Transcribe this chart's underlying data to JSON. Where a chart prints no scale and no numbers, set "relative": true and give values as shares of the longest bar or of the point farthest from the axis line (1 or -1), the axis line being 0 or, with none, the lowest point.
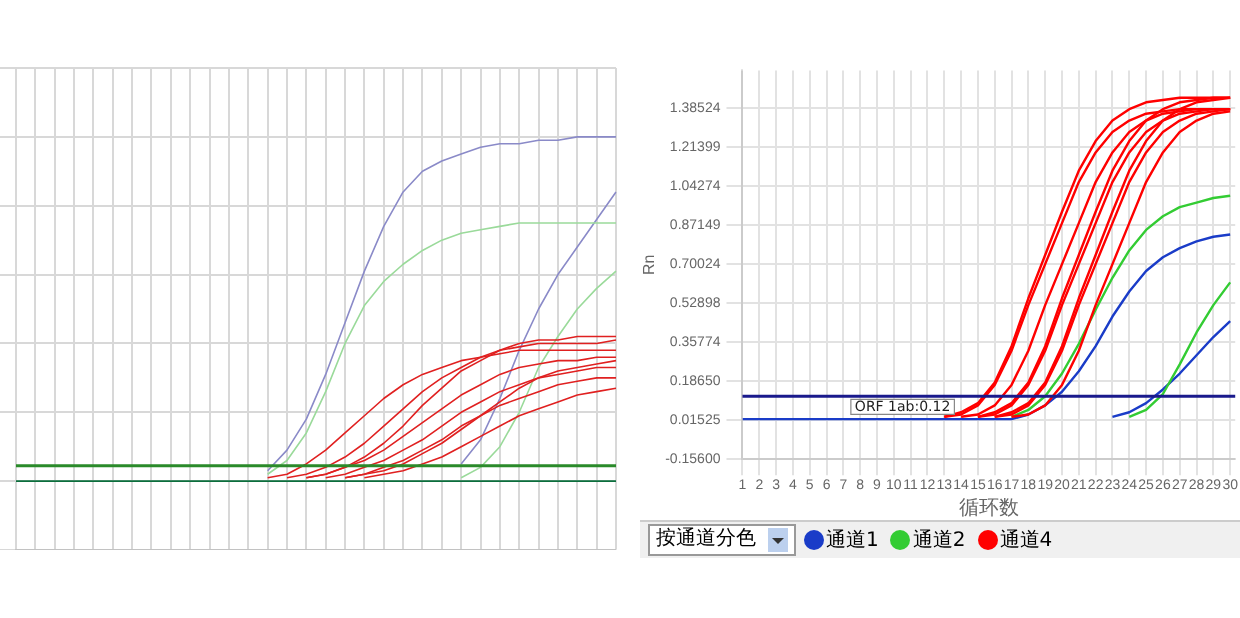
{
  "chart_data": [
    {
      "type": "line",
      "relative": true,
      "grid": true,
      "legend": false,
      "tick_labels": false,
      "marker": "none",
      "line_style": "solid",
      "categories": [
        null,
        null,
        null,
        null,
        null,
        null,
        null,
        null,
        null,
        null,
        null,
        null,
        null,
        null,
        null,
        null,
        null,
        null,
        null,
        null,
        null,
        null,
        null,
        null,
        null,
        null,
        null,
        null,
        null,
        null,
        null,
        null
      ],
      "ref_lines": [
        {
          "axis": "y",
          "value": 0.045,
          "color": "#2a8a2a"
        }
      ],
      "series": [
        {
          "color": "#8a8ac8",
          "values": [
            null,
            null,
            null,
            null,
            null,
            null,
            null,
            null,
            null,
            null,
            null,
            null,
            null,
            0.03,
            0.09,
            0.18,
            0.31,
            0.46,
            0.61,
            0.74,
            0.84,
            0.9,
            0.93,
            0.95,
            0.97,
            0.98,
            0.98,
            0.99,
            0.99,
            1,
            1,
            1
          ]
        },
        {
          "color": "#8a8ac8",
          "values": [
            null,
            null,
            null,
            null,
            null,
            null,
            null,
            null,
            null,
            null,
            null,
            null,
            null,
            null,
            null,
            null,
            null,
            null,
            null,
            null,
            null,
            null,
            null,
            0.05,
            0.12,
            0.24,
            0.38,
            0.5,
            0.6,
            0.68,
            0.76,
            0.84
          ]
        },
        {
          "color": "#9ada9a",
          "values": [
            null,
            null,
            null,
            null,
            null,
            null,
            null,
            null,
            null,
            null,
            null,
            null,
            null,
            0.02,
            0.06,
            0.14,
            0.26,
            0.4,
            0.51,
            0.58,
            0.63,
            0.67,
            0.7,
            0.72,
            0.73,
            0.74,
            0.75,
            0.75,
            0.75,
            0.75,
            0.75,
            0.75
          ]
        },
        {
          "color": "#9ada9a",
          "values": [
            null,
            null,
            null,
            null,
            null,
            null,
            null,
            null,
            null,
            null,
            null,
            null,
            null,
            null,
            null,
            null,
            null,
            null,
            null,
            null,
            null,
            null,
            null,
            0.01,
            0.04,
            0.1,
            0.2,
            0.33,
            0.42,
            0.5,
            0.56,
            0.61
          ]
        },
        {
          "color": "#0b6e3c",
          "values": [
            0,
            0,
            0,
            0,
            0,
            0,
            0,
            0,
            0,
            0,
            0,
            0,
            0,
            0,
            0,
            0,
            0,
            0,
            0,
            0,
            0,
            0,
            0,
            0,
            0,
            0,
            0,
            0,
            0,
            0,
            0,
            0
          ]
        },
        {
          "color": "#e02020",
          "values": [
            null,
            null,
            null,
            null,
            null,
            null,
            null,
            null,
            null,
            null,
            null,
            null,
            null,
            0.01,
            0.02,
            0.05,
            0.09,
            0.14,
            0.19,
            0.24,
            0.28,
            0.31,
            0.33,
            0.35,
            0.36,
            0.37,
            0.38,
            0.38,
            0.38,
            0.38,
            0.38,
            0.38
          ]
        },
        {
          "color": "#e02020",
          "values": [
            null,
            null,
            null,
            null,
            null,
            null,
            null,
            null,
            null,
            null,
            null,
            null,
            null,
            null,
            0.01,
            0.02,
            0.04,
            0.07,
            0.11,
            0.16,
            0.21,
            0.26,
            0.3,
            0.33,
            0.36,
            0.38,
            0.39,
            0.4,
            0.4,
            0.4,
            0.4,
            0.41
          ]
        },
        {
          "color": "#e02020",
          "values": [
            null,
            null,
            null,
            null,
            null,
            null,
            null,
            null,
            null,
            null,
            null,
            null,
            null,
            null,
            null,
            0.01,
            0.02,
            0.04,
            0.06,
            0.09,
            0.13,
            0.17,
            0.21,
            0.25,
            0.28,
            0.31,
            0.33,
            0.34,
            0.35,
            0.35,
            0.36,
            0.36
          ]
        },
        {
          "color": "#e02020",
          "values": [
            null,
            null,
            null,
            null,
            null,
            null,
            null,
            null,
            null,
            null,
            null,
            null,
            null,
            null,
            null,
            null,
            0.01,
            0.02,
            0.04,
            0.06,
            0.09,
            0.12,
            0.16,
            0.2,
            0.23,
            0.26,
            0.28,
            0.3,
            0.31,
            0.32,
            0.33,
            0.33
          ]
        },
        {
          "color": "#e02020",
          "values": [
            null,
            null,
            null,
            null,
            null,
            null,
            null,
            null,
            null,
            null,
            null,
            null,
            null,
            null,
            null,
            null,
            null,
            0.01,
            0.02,
            0.04,
            0.06,
            0.09,
            0.12,
            0.16,
            0.19,
            0.22,
            0.24,
            0.26,
            0.28,
            0.29,
            0.3,
            0.3
          ]
        },
        {
          "color": "#e02020",
          "values": [
            null,
            null,
            null,
            null,
            null,
            null,
            null,
            null,
            null,
            null,
            null,
            null,
            null,
            null,
            null,
            null,
            null,
            null,
            0.01,
            0.02,
            0.03,
            0.05,
            0.07,
            0.1,
            0.13,
            0.16,
            0.19,
            0.21,
            0.23,
            0.25,
            0.26,
            0.27
          ]
        },
        {
          "color": "#e02020",
          "values": [
            null,
            null,
            null,
            null,
            null,
            null,
            null,
            null,
            null,
            null,
            null,
            null,
            null,
            null,
            null,
            null,
            null,
            0.01,
            0.02,
            0.03,
            0.05,
            0.08,
            0.11,
            0.15,
            0.19,
            0.23,
            0.27,
            0.3,
            0.32,
            0.33,
            0.34,
            0.35
          ]
        },
        {
          "color": "#e02020",
          "values": [
            null,
            null,
            null,
            null,
            null,
            null,
            null,
            null,
            null,
            null,
            null,
            null,
            null,
            null,
            null,
            0.01,
            0.02,
            0.04,
            0.07,
            0.11,
            0.16,
            0.22,
            0.27,
            0.32,
            0.35,
            0.38,
            0.4,
            0.41,
            0.41,
            0.42,
            0.42,
            0.42
          ]
        }
      ]
    },
    {
      "type": "line",
      "grid": true,
      "legend": "bottom left",
      "marker": "none",
      "line_style": "solid",
      "xlabel": "循环数",
      "ylabel": "Rn",
      "annotations": [
        "按通道分色"
      ],
      "x": [
        1,
        2,
        3,
        4,
        5,
        6,
        7,
        8,
        9,
        10,
        11,
        12,
        13,
        14,
        15,
        16,
        17,
        18,
        19,
        20,
        21,
        22,
        23,
        24,
        25,
        26,
        27,
        28,
        29,
        30
      ],
      "xlim": [
        1,
        30.3
      ],
      "xticks": [
        1,
        2,
        3,
        4,
        5,
        6,
        7,
        8,
        9,
        10,
        11,
        12,
        13,
        14,
        15,
        16,
        17,
        18,
        19,
        20,
        21,
        22,
        23,
        24,
        25,
        26,
        27,
        28,
        29,
        30
      ],
      "ylim": [
        -0.156,
        1.55
      ],
      "yticks": [
        {
          "value": -0.156,
          "label": "-0.15600"
        },
        0.01525,
        {
          "value": 0.1865,
          "label": "0.18650"
        },
        0.35774,
        0.52898,
        0.70024,
        0.87149,
        1.04274,
        1.21399,
        1.38524
      ],
      "ref_lines": [
        {
          "axis": "y",
          "value": 0.12,
          "label": "ORF 1ab:0.12",
          "color": "#1a1a8c"
        }
      ],
      "series": [
        {
          "name": "通道1",
          "color": "#1a3cc8",
          "values": [
            0.02,
            0.02,
            0.02,
            0.02,
            0.02,
            0.02,
            0.02,
            0.02,
            0.02,
            0.02,
            0.02,
            0.02,
            0.02,
            0.02,
            0.02,
            0.02,
            0.02,
            0.04,
            0.08,
            0.14,
            0.23,
            0.34,
            0.47,
            0.58,
            0.67,
            0.73,
            0.77,
            0.8,
            0.82,
            0.83
          ]
        },
        {
          "color": "#1a3cc8",
          "values": [
            null,
            null,
            null,
            null,
            null,
            null,
            null,
            null,
            null,
            null,
            null,
            null,
            null,
            null,
            null,
            null,
            null,
            null,
            null,
            null,
            null,
            null,
            0.03,
            0.05,
            0.09,
            0.15,
            0.22,
            0.3,
            0.38,
            0.45
          ]
        },
        {
          "name": "通道2",
          "color": "#33cc33",
          "values": [
            null,
            null,
            null,
            null,
            null,
            null,
            null,
            null,
            null,
            null,
            null,
            null,
            null,
            null,
            null,
            null,
            0.03,
            0.06,
            0.12,
            0.22,
            0.35,
            0.5,
            0.64,
            0.76,
            0.85,
            0.91,
            0.95,
            0.97,
            0.99,
            1
          ]
        },
        {
          "color": "#33cc33",
          "values": [
            null,
            null,
            null,
            null,
            null,
            null,
            null,
            null,
            null,
            null,
            null,
            null,
            null,
            null,
            null,
            null,
            null,
            null,
            null,
            null,
            null,
            null,
            null,
            0.03,
            0.06,
            0.13,
            0.26,
            0.4,
            0.52,
            0.62
          ]
        },
        {
          "name": "通道4",
          "color": "#ff0000",
          "values": [
            null,
            null,
            null,
            null,
            null,
            null,
            null,
            null,
            null,
            null,
            null,
            null,
            0.03,
            0.04,
            0.08,
            0.17,
            0.32,
            0.52,
            0.7,
            0.88,
            1.06,
            1.19,
            1.28,
            1.33,
            1.36,
            1.37,
            1.38,
            1.38,
            1.38,
            1.38
          ]
        },
        {
          "color": "#ff0000",
          "values": [
            null,
            null,
            null,
            null,
            null,
            null,
            null,
            null,
            null,
            null,
            null,
            null,
            0.03,
            0.05,
            0.09,
            0.18,
            0.34,
            0.55,
            0.74,
            0.93,
            1.11,
            1.24,
            1.33,
            1.38,
            1.41,
            1.42,
            1.43,
            1.43,
            1.43,
            1.43
          ]
        },
        {
          "color": "#ff0000",
          "values": [
            null,
            null,
            null,
            null,
            null,
            null,
            null,
            null,
            null,
            null,
            null,
            null,
            null,
            0.03,
            0.04,
            0.08,
            0.17,
            0.32,
            0.52,
            0.7,
            0.88,
            1.06,
            1.19,
            1.28,
            1.33,
            1.36,
            1.37,
            1.38,
            1.38,
            1.38
          ]
        },
        {
          "color": "#ff0000",
          "values": [
            null,
            null,
            null,
            null,
            null,
            null,
            null,
            null,
            null,
            null,
            null,
            null,
            null,
            null,
            0.03,
            0.05,
            0.09,
            0.18,
            0.34,
            0.55,
            0.74,
            0.93,
            1.11,
            1.24,
            1.33,
            1.38,
            1.41,
            1.42,
            1.43,
            1.43
          ]
        },
        {
          "color": "#ff0000",
          "values": [
            null,
            null,
            null,
            null,
            null,
            null,
            null,
            null,
            null,
            null,
            null,
            null,
            null,
            null,
            0.03,
            0.04,
            0.08,
            0.17,
            0.32,
            0.52,
            0.7,
            0.88,
            1.06,
            1.19,
            1.28,
            1.33,
            1.36,
            1.37,
            1.38,
            1.38
          ]
        },
        {
          "color": "#ff0000",
          "values": [
            null,
            null,
            null,
            null,
            null,
            null,
            null,
            null,
            null,
            null,
            null,
            null,
            null,
            null,
            null,
            0.03,
            0.04,
            0.08,
            0.17,
            0.32,
            0.52,
            0.7,
            0.88,
            1.06,
            1.19,
            1.28,
            1.33,
            1.36,
            1.37,
            1.38
          ]
        },
        {
          "color": "#ff0000",
          "values": [
            null,
            null,
            null,
            null,
            null,
            null,
            null,
            null,
            null,
            null,
            null,
            null,
            null,
            null,
            null,
            0.03,
            0.05,
            0.09,
            0.18,
            0.34,
            0.55,
            0.74,
            0.93,
            1.11,
            1.24,
            1.33,
            1.38,
            1.41,
            1.42,
            1.43
          ]
        },
        {
          "color": "#ff0000",
          "values": [
            null,
            null,
            null,
            null,
            null,
            null,
            null,
            null,
            null,
            null,
            null,
            null,
            null,
            null,
            null,
            null,
            0.03,
            0.04,
            0.08,
            0.17,
            0.32,
            0.52,
            0.7,
            0.88,
            1.06,
            1.19,
            1.28,
            1.33,
            1.36,
            1.37
          ]
        }
      ]
    }
  ]
}
